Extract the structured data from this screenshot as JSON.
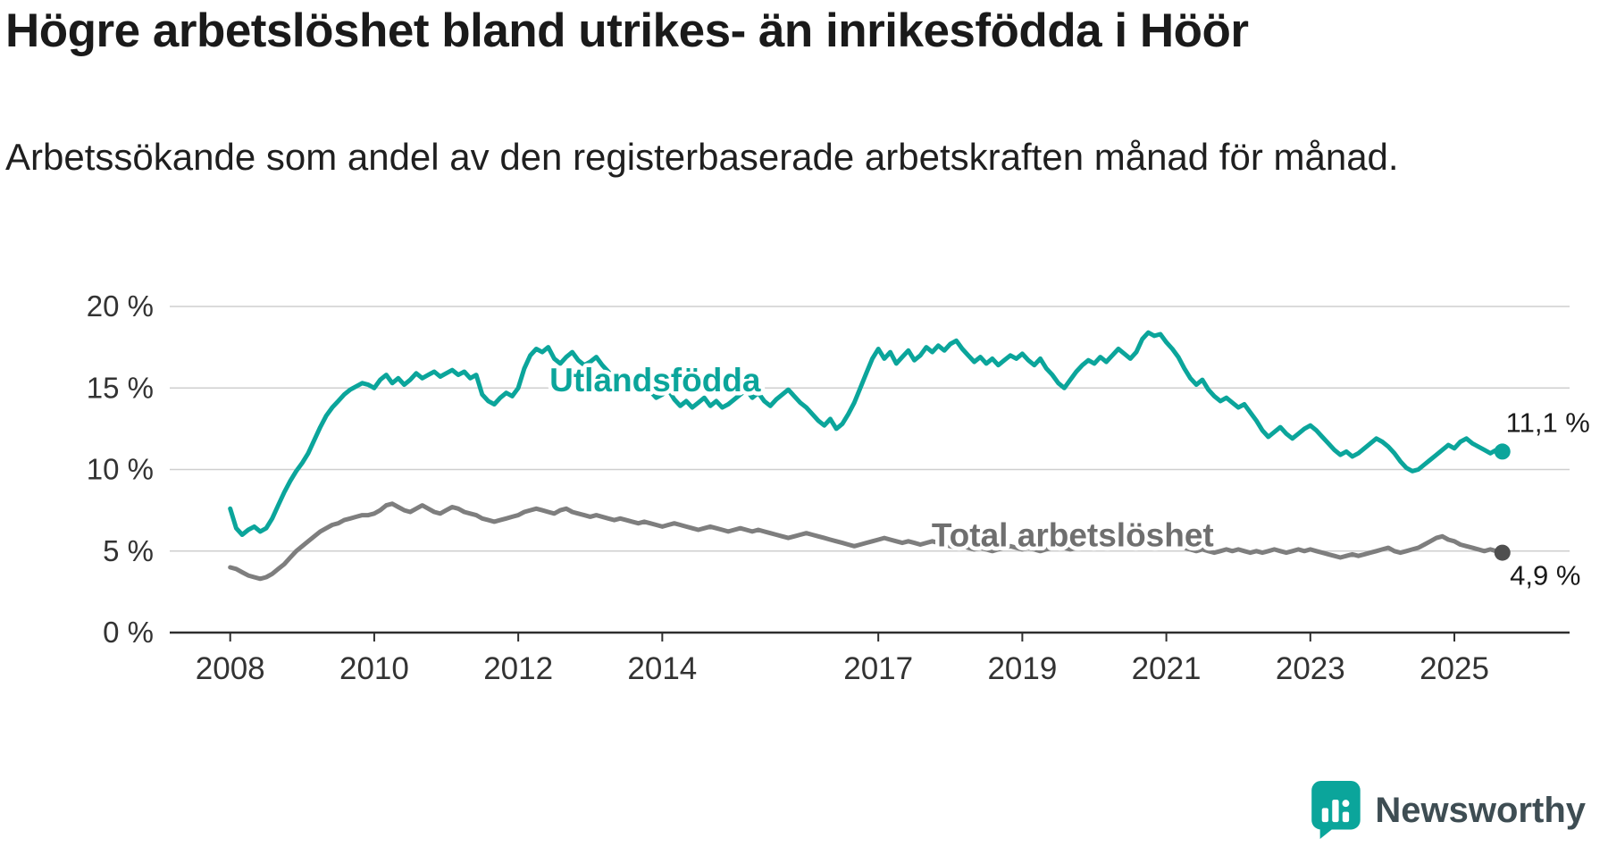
{
  "header": {
    "title": "Högre arbetslöshet bland utrikes- än inrikesfödda i Höör",
    "subtitle": "Arbetssökande som andel av den registerbaserade arbetskraften månad för månad."
  },
  "branding": {
    "name": "Newsworthy",
    "logo_color": "#0ba59b"
  },
  "colors": {
    "title_text": "#1a1a1a",
    "axis_text": "#333333",
    "grid": "#cfcfcf",
    "axis_line": "#2e2e2e",
    "teal": "#0ba59b",
    "gray": "#7e7e7e"
  },
  "chart_data": {
    "type": "line",
    "title": "Högre arbetslöshet bland utrikes- än inrikesfödda i Höör",
    "subtitle": "Arbetssökande som andel av den registerbaserade arbetskraften månad för månad.",
    "xlabel": "",
    "ylabel": "",
    "x_unit": "monthly, starting January 2008, ending September 2025",
    "x_start_year": 2008,
    "x_ticks": [
      2008,
      2010,
      2012,
      2014,
      2017,
      2019,
      2021,
      2023,
      2025
    ],
    "y_ticks": [
      0,
      5,
      10,
      15,
      20
    ],
    "y_tick_suffix": " %",
    "ylim": [
      0,
      20
    ],
    "xlim": [
      2007.16,
      2026.6
    ],
    "grid": "horizontal",
    "legend": "inline-labels",
    "series": [
      {
        "name": "Utlandsfödda",
        "color": "#0ba59b",
        "label_color": "#0ba59b",
        "dot_color": "#0ba59b",
        "line_width": 5,
        "end_value": 11.1,
        "end_value_label": "11,1 %",
        "label_position": {
          "x": 2013.9,
          "y": 15.5
        },
        "end_label_offset": {
          "dx": 51,
          "dy": -22
        },
        "values": [
          7.6,
          6.4,
          6.0,
          6.3,
          6.5,
          6.2,
          6.4,
          7.0,
          7.8,
          8.6,
          9.3,
          9.9,
          10.4,
          11.0,
          11.8,
          12.6,
          13.3,
          13.8,
          14.2,
          14.6,
          14.9,
          15.1,
          15.3,
          15.2,
          15.0,
          15.5,
          15.8,
          15.3,
          15.6,
          15.2,
          15.5,
          15.9,
          15.6,
          15.8,
          16.0,
          15.7,
          15.9,
          16.1,
          15.8,
          16.0,
          15.6,
          15.8,
          14.6,
          14.2,
          14.0,
          14.4,
          14.7,
          14.5,
          15.0,
          16.2,
          17.0,
          17.4,
          17.2,
          17.5,
          16.8,
          16.5,
          16.9,
          17.2,
          16.7,
          16.4,
          16.6,
          16.9,
          16.4,
          16.0,
          15.6,
          15.9,
          15.4,
          15.0,
          14.7,
          15.1,
          14.8,
          14.4,
          14.6,
          14.9,
          14.3,
          13.9,
          14.2,
          13.8,
          14.1,
          14.4,
          13.9,
          14.2,
          13.8,
          14.0,
          14.3,
          14.6,
          14.9,
          14.4,
          14.7,
          14.2,
          13.9,
          14.3,
          14.6,
          14.9,
          14.5,
          14.1,
          13.8,
          13.4,
          13.0,
          12.7,
          13.1,
          12.5,
          12.8,
          13.4,
          14.1,
          15.0,
          15.9,
          16.8,
          17.4,
          16.8,
          17.2,
          16.5,
          16.9,
          17.3,
          16.7,
          17.0,
          17.5,
          17.2,
          17.6,
          17.3,
          17.7,
          17.9,
          17.4,
          17.0,
          16.6,
          16.9,
          16.5,
          16.8,
          16.4,
          16.7,
          17.0,
          16.8,
          17.1,
          16.7,
          16.4,
          16.8,
          16.2,
          15.8,
          15.3,
          15.0,
          15.5,
          16.0,
          16.4,
          16.7,
          16.5,
          16.9,
          16.6,
          17.0,
          17.4,
          17.1,
          16.8,
          17.2,
          18.0,
          18.4,
          18.2,
          18.3,
          17.8,
          17.4,
          16.9,
          16.2,
          15.6,
          15.2,
          15.5,
          14.9,
          14.5,
          14.2,
          14.4,
          14.1,
          13.8,
          14.0,
          13.5,
          13.0,
          12.4,
          12.0,
          12.3,
          12.6,
          12.2,
          11.9,
          12.2,
          12.5,
          12.7,
          12.4,
          12.0,
          11.6,
          11.2,
          10.9,
          11.1,
          10.8,
          11.0,
          11.3,
          11.6,
          11.9,
          11.7,
          11.4,
          11.0,
          10.5,
          10.1,
          9.9,
          10.0,
          10.3,
          10.6,
          10.9,
          11.2,
          11.5,
          11.3,
          11.7,
          11.9,
          11.6,
          11.4,
          11.2,
          11.0,
          11.2,
          11.1
        ]
      },
      {
        "name": "Total arbetslöshet",
        "color": "#7e7e7e",
        "label_color": "#6f6f6f",
        "dot_color": "#4f4f4f",
        "line_width": 5,
        "end_value": 4.9,
        "end_value_label": "4,9 %",
        "label_position": {
          "x": 2019.7,
          "y": 6.0
        },
        "end_label_offset": {
          "dx": 48,
          "dy": 36
        },
        "values": [
          4.0,
          3.9,
          3.7,
          3.5,
          3.4,
          3.3,
          3.4,
          3.6,
          3.9,
          4.2,
          4.6,
          5.0,
          5.3,
          5.6,
          5.9,
          6.2,
          6.4,
          6.6,
          6.7,
          6.9,
          7.0,
          7.1,
          7.2,
          7.2,
          7.3,
          7.5,
          7.8,
          7.9,
          7.7,
          7.5,
          7.4,
          7.6,
          7.8,
          7.6,
          7.4,
          7.3,
          7.5,
          7.7,
          7.6,
          7.4,
          7.3,
          7.2,
          7.0,
          6.9,
          6.8,
          6.9,
          7.0,
          7.1,
          7.2,
          7.4,
          7.5,
          7.6,
          7.5,
          7.4,
          7.3,
          7.5,
          7.6,
          7.4,
          7.3,
          7.2,
          7.1,
          7.2,
          7.1,
          7.0,
          6.9,
          7.0,
          6.9,
          6.8,
          6.7,
          6.8,
          6.7,
          6.6,
          6.5,
          6.6,
          6.7,
          6.6,
          6.5,
          6.4,
          6.3,
          6.4,
          6.5,
          6.4,
          6.3,
          6.2,
          6.3,
          6.4,
          6.3,
          6.2,
          6.3,
          6.2,
          6.1,
          6.0,
          5.9,
          5.8,
          5.9,
          6.0,
          6.1,
          6.0,
          5.9,
          5.8,
          5.7,
          5.6,
          5.5,
          5.4,
          5.3,
          5.4,
          5.5,
          5.6,
          5.7,
          5.8,
          5.7,
          5.6,
          5.5,
          5.6,
          5.5,
          5.4,
          5.5,
          5.6,
          5.5,
          5.4,
          5.3,
          5.2,
          5.3,
          5.2,
          5.1,
          5.2,
          5.1,
          5.0,
          5.1,
          5.2,
          5.3,
          5.2,
          5.1,
          5.2,
          5.1,
          5.0,
          5.1,
          5.2,
          5.3,
          5.2,
          5.1,
          5.2,
          5.3,
          5.4,
          5.5,
          5.6,
          5.8,
          6.0,
          6.1,
          6.2,
          6.1,
          6.0,
          5.9,
          5.8,
          5.7,
          5.6,
          5.5,
          5.4,
          5.3,
          5.2,
          5.1,
          5.0,
          5.1,
          5.0,
          4.9,
          5.0,
          5.1,
          5.0,
          5.1,
          5.0,
          4.9,
          5.0,
          4.9,
          5.0,
          5.1,
          5.0,
          4.9,
          5.0,
          5.1,
          5.0,
          5.1,
          5.0,
          4.9,
          4.8,
          4.7,
          4.6,
          4.7,
          4.8,
          4.7,
          4.8,
          4.9,
          5.0,
          5.1,
          5.2,
          5.0,
          4.9,
          5.0,
          5.1,
          5.2,
          5.4,
          5.6,
          5.8,
          5.9,
          5.7,
          5.6,
          5.4,
          5.3,
          5.2,
          5.1,
          5.0,
          5.1,
          5.0,
          4.9
        ]
      }
    ]
  }
}
